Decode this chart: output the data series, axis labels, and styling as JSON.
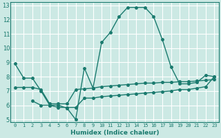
{
  "xlabel": "Humidex (Indice chaleur)",
  "ylabel": "",
  "bg_color": "#cce9e4",
  "grid_color": "#ffffff",
  "line_color": "#1a7a6e",
  "xlim": [
    -0.5,
    23.5
  ],
  "ylim": [
    4.8,
    13.2
  ],
  "xticks": [
    0,
    1,
    2,
    3,
    4,
    5,
    6,
    7,
    8,
    9,
    10,
    11,
    12,
    13,
    14,
    15,
    16,
    17,
    18,
    19,
    20,
    21,
    22,
    23
  ],
  "yticks": [
    5,
    6,
    7,
    8,
    9,
    10,
    11,
    12,
    13
  ],
  "line1_x": [
    0,
    1,
    2,
    3,
    4,
    5,
    6,
    7,
    8,
    9,
    10,
    11,
    12,
    13,
    14,
    15,
    16,
    17,
    18,
    19,
    20,
    21,
    22,
    23
  ],
  "line1_y": [
    8.9,
    7.9,
    7.9,
    7.0,
    6.0,
    6.0,
    5.8,
    5.0,
    8.6,
    7.2,
    10.4,
    11.1,
    12.2,
    12.85,
    12.85,
    12.85,
    12.2,
    10.6,
    8.7,
    7.5,
    7.5,
    7.6,
    8.1,
    8.0
  ],
  "line2_x": [
    0,
    1,
    2,
    3,
    4,
    5,
    6,
    7,
    8,
    9,
    10,
    11,
    12,
    13,
    14,
    15,
    16,
    17,
    18,
    19,
    20,
    21,
    22,
    23
  ],
  "line2_y": [
    7.25,
    7.25,
    7.25,
    7.1,
    6.1,
    6.1,
    6.1,
    7.1,
    7.15,
    7.2,
    7.3,
    7.35,
    7.4,
    7.45,
    7.5,
    7.55,
    7.55,
    7.6,
    7.6,
    7.65,
    7.65,
    7.7,
    7.75,
    7.8
  ],
  "line3_x": [
    2,
    3,
    4,
    5,
    6,
    7,
    8,
    9,
    10,
    11,
    12,
    13,
    14,
    15,
    16,
    17,
    18,
    19,
    20,
    21,
    22,
    23
  ],
  "line3_y": [
    6.3,
    6.0,
    6.0,
    5.85,
    5.85,
    5.85,
    6.5,
    6.5,
    6.6,
    6.65,
    6.7,
    6.75,
    6.8,
    6.85,
    6.9,
    6.95,
    7.0,
    7.1,
    7.1,
    7.2,
    7.3,
    8.0
  ]
}
